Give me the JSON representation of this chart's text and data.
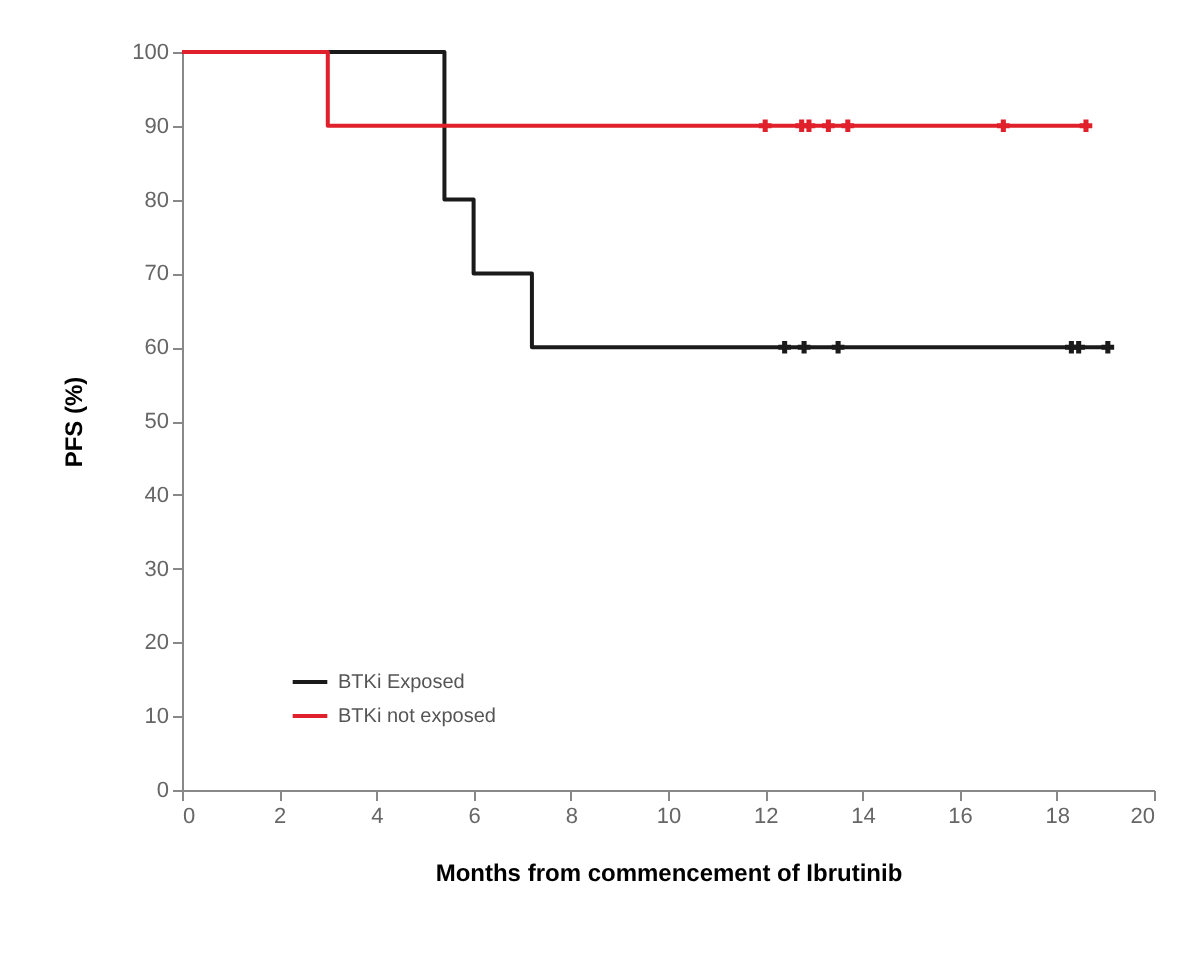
{
  "chart_data": {
    "type": "step",
    "xlabel": "Months from commencement of Ibrutinib",
    "ylabel": "PFS (%)",
    "xlim": [
      0,
      20
    ],
    "xticks": [
      0,
      2,
      4,
      6,
      8,
      10,
      12,
      14,
      16,
      18,
      20
    ],
    "ylim": [
      0,
      100
    ],
    "yticks": [
      0,
      10,
      20,
      30,
      40,
      50,
      60,
      70,
      80,
      90,
      100
    ],
    "grid": false,
    "legend": "bottom left",
    "series": [
      {
        "name": "BTKi Exposed",
        "color": "#1a1a1a",
        "type": "step",
        "x": [
          0,
          5.4,
          6.0,
          7.2,
          19.05
        ],
        "values": [
          100,
          80,
          70,
          60,
          60
        ]
      },
      {
        "name": "BTKi not exposed",
        "color": "#e0202a",
        "type": "step",
        "x": [
          0,
          3.0,
          18.6
        ],
        "values": [
          100,
          90,
          90
        ]
      },
      {
        "color": "#1a1a1a",
        "type": "scatter",
        "marker": "cross",
        "x": [
          12.4,
          12.8,
          13.5,
          18.3,
          18.45,
          19.05
        ],
        "values": [
          60,
          60,
          60,
          60,
          60,
          60
        ]
      },
      {
        "color": "#e0202a",
        "type": "scatter",
        "marker": "cross",
        "x": [
          12.0,
          12.75,
          12.9,
          13.3,
          13.7,
          16.9,
          18.6
        ],
        "values": [
          90,
          90,
          90,
          90,
          90,
          90,
          90
        ]
      }
    ]
  }
}
